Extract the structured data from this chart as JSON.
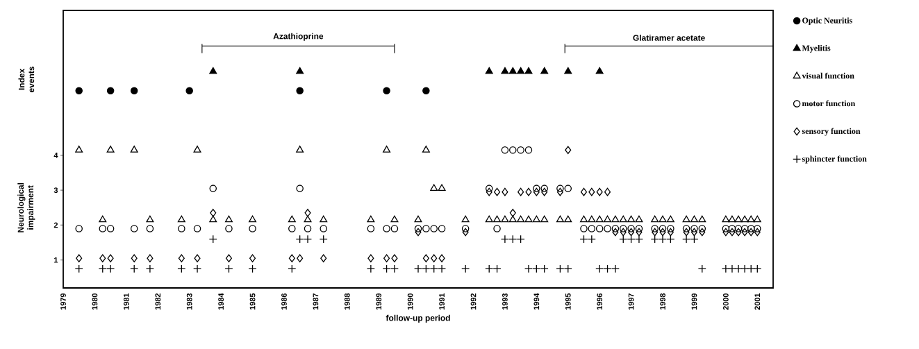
{
  "chart_data": {
    "type": "scatter",
    "xlabel": "follow-up period",
    "ylabel": "Neurological impairment",
    "annotations": [
      "Index events"
    ],
    "xlim": [
      1979,
      2001.5
    ],
    "ylim": [
      0.2,
      8.15
    ],
    "xticks": [
      1979,
      1980,
      1981,
      1982,
      1983,
      1984,
      1985,
      1986,
      1987,
      1988,
      1989,
      1990,
      1991,
      1992,
      1993,
      1994,
      1995,
      1996,
      1997,
      1998,
      1999,
      2000,
      2001
    ],
    "yticks": [
      1,
      2,
      3,
      4
    ],
    "legend": "right",
    "series": [
      {
        "name": "Azathioprine",
        "type": "line",
        "color": "#000000",
        "marker": "none",
        "x": [
          1983.4,
          1989.5
        ],
        "values": [
          7.13,
          7.13
        ],
        "errors": [
          [
            6.93,
            7.19
          ],
          [
            6.93,
            7.19
          ]
        ]
      },
      {
        "name": "Glatiramer acetate",
        "type": "line",
        "color": "#000000",
        "marker": "none",
        "x": [
          1994.9,
          2001.5
        ],
        "values": [
          7.13,
          7.13
        ],
        "errors": [
          [
            6.93,
            7.19
          ],
          null
        ]
      },
      {
        "name": "Optic Neuritis",
        "color": "#000000",
        "marker": "circle",
        "x": [
          1979.5,
          1980.5,
          1981.25,
          1983,
          1986.5,
          1989.25,
          1990.5
        ],
        "values": [
          5.85,
          5.85,
          5.85,
          5.85,
          5.85,
          5.85,
          5.85
        ]
      },
      {
        "name": "Myelitis",
        "color": "#000000",
        "marker": "triangle",
        "x": [
          1983.75,
          1986.5,
          1992.5,
          1993,
          1993.25,
          1993.5,
          1993.75,
          1994.25,
          1995,
          1996
        ],
        "values": [
          6.4,
          6.4,
          6.4,
          6.4,
          6.4,
          6.4,
          6.4,
          6.4,
          6.4,
          6.4
        ]
      },
      {
        "name": "visual function",
        "color": "#000000",
        "marker": "triangle-open",
        "x": [
          1979.5,
          1980.5,
          1981.25,
          1983.25,
          1986.5,
          1989.25,
          1990.5,
          1990.75,
          1991,
          1980.25,
          1981.75,
          1982.75,
          1983.75,
          1984.25,
          1985,
          1986.25,
          1986.75,
          1987.25,
          1988.75,
          1989.5,
          1990.25,
          1991.75,
          1992.5,
          1992.75,
          1993,
          1993.25,
          1993.5,
          1993.75,
          1994,
          1994.25,
          1994.75,
          1995,
          1995.5,
          1995.75,
          1996,
          1996.25,
          1996.5,
          1996.75,
          1997,
          1997.25,
          1997.75,
          1998,
          1998.25,
          1998.75,
          1999,
          1999.25,
          2000,
          2000.2,
          2000.4,
          2000.6,
          2000.8,
          2001
        ],
        "values": [
          4.15,
          4.15,
          4.15,
          4.15,
          4.15,
          4.15,
          4.15,
          3.05,
          3.05,
          2.15,
          2.15,
          2.15,
          2.15,
          2.15,
          2.15,
          2.15,
          2.15,
          2.15,
          2.15,
          2.15,
          2.15,
          2.15,
          2.15,
          2.15,
          2.15,
          2.15,
          2.15,
          2.15,
          2.15,
          2.15,
          2.15,
          2.15,
          2.15,
          2.15,
          2.15,
          2.15,
          2.15,
          2.15,
          2.15,
          2.15,
          2.15,
          2.15,
          2.15,
          2.15,
          2.15,
          2.15,
          2.15,
          2.15,
          2.15,
          2.15,
          2.15,
          2.15
        ]
      },
      {
        "name": "motor function",
        "color": "#000000",
        "marker": "circle-open",
        "x": [
          1993,
          1993.25,
          1993.5,
          1993.75,
          1983.75,
          1986.5,
          1992.5,
          1994,
          1994.25,
          1994.75,
          1995,
          1979.5,
          1980.25,
          1980.5,
          1981.25,
          1981.75,
          1982.75,
          1983.25,
          1984.25,
          1985,
          1986.25,
          1986.75,
          1987.25,
          1988.75,
          1989.25,
          1989.5,
          1990.25,
          1990.5,
          1990.75,
          1991,
          1991.75,
          1992.75,
          1995.5,
          1995.75,
          1996,
          1996.25,
          1996.5,
          1996.75,
          1997,
          1997.25,
          1997.75,
          1998,
          1998.25,
          1998.75,
          1999,
          1999.25,
          2000,
          2000.2,
          2000.4,
          2000.6,
          2000.8,
          2001
        ],
        "values": [
          4.15,
          4.15,
          4.15,
          4.15,
          3.05,
          3.05,
          3.05,
          3.05,
          3.05,
          3.05,
          3.05,
          1.9,
          1.9,
          1.9,
          1.9,
          1.9,
          1.9,
          1.9,
          1.9,
          1.9,
          1.9,
          1.9,
          1.9,
          1.9,
          1.9,
          1.9,
          1.9,
          1.9,
          1.9,
          1.9,
          1.9,
          1.9,
          1.9,
          1.9,
          1.9,
          1.9,
          1.9,
          1.9,
          1.9,
          1.9,
          1.9,
          1.9,
          1.9,
          1.9,
          1.9,
          1.9,
          1.9,
          1.9,
          1.9,
          1.9,
          1.9,
          1.9
        ]
      },
      {
        "name": "sensory function",
        "color": "#000000",
        "marker": "diamond-open",
        "x": [
          1995,
          1992.5,
          1992.75,
          1993,
          1993.5,
          1993.75,
          1994,
          1994.25,
          1994.75,
          1995.5,
          1995.75,
          1996,
          1996.25,
          1983.75,
          1986.75,
          1993.25,
          1990.25,
          1991.75,
          1996.5,
          1996.75,
          1997,
          1997.25,
          1997.75,
          1998,
          1998.25,
          1998.75,
          1999,
          1999.25,
          2000,
          2000.2,
          2000.4,
          2000.6,
          2000.8,
          2001,
          1979.5,
          1980.25,
          1980.5,
          1981.25,
          1981.75,
          1982.75,
          1983.25,
          1984.25,
          1985,
          1986.25,
          1986.5,
          1987.25,
          1988.75,
          1989.25,
          1989.5,
          1990.5,
          1990.75,
          1991
        ],
        "values": [
          4.15,
          2.95,
          2.95,
          2.95,
          2.95,
          2.95,
          2.95,
          2.95,
          2.95,
          2.95,
          2.95,
          2.95,
          2.95,
          2.35,
          2.35,
          2.35,
          1.8,
          1.8,
          1.8,
          1.8,
          1.8,
          1.8,
          1.8,
          1.8,
          1.8,
          1.8,
          1.8,
          1.8,
          1.8,
          1.8,
          1.8,
          1.8,
          1.8,
          1.8,
          1.05,
          1.05,
          1.05,
          1.05,
          1.05,
          1.05,
          1.05,
          1.05,
          1.05,
          1.05,
          1.05,
          1.05,
          1.05,
          1.05,
          1.05,
          1.05,
          1.05,
          1.05
        ]
      },
      {
        "name": "sphincter function",
        "color": "#000000",
        "marker": "cross",
        "x": [
          1983.75,
          1986.5,
          1986.75,
          1987.25,
          1993,
          1993.25,
          1993.5,
          1995.5,
          1995.75,
          1996.75,
          1997,
          1997.25,
          1997.75,
          1998,
          1998.25,
          1998.75,
          1999,
          1979.5,
          1980.25,
          1980.5,
          1981.25,
          1981.75,
          1982.75,
          1983.25,
          1984.25,
          1985,
          1986.25,
          1988.75,
          1989.25,
          1989.5,
          1990.25,
          1990.5,
          1990.75,
          1991,
          1991.75,
          1992.5,
          1992.75,
          1993.75,
          1994,
          1994.25,
          1994.75,
          1995,
          1996,
          1996.25,
          1996.5,
          1999.25,
          2000,
          2000.2,
          2000.4,
          2000.6,
          2000.8,
          2001
        ],
        "values": [
          1.6,
          1.6,
          1.6,
          1.6,
          1.6,
          1.6,
          1.6,
          1.6,
          1.6,
          1.6,
          1.6,
          1.6,
          1.6,
          1.6,
          1.6,
          1.6,
          1.6,
          0.75,
          0.75,
          0.75,
          0.75,
          0.75,
          0.75,
          0.75,
          0.75,
          0.75,
          0.75,
          0.75,
          0.75,
          0.75,
          0.75,
          0.75,
          0.75,
          0.75,
          0.75,
          0.75,
          0.75,
          0.75,
          0.75,
          0.75,
          0.75,
          0.75,
          0.75,
          0.75,
          0.75,
          0.75,
          0.75,
          0.75,
          0.75,
          0.75,
          0.75,
          0.75
        ]
      }
    ]
  }
}
